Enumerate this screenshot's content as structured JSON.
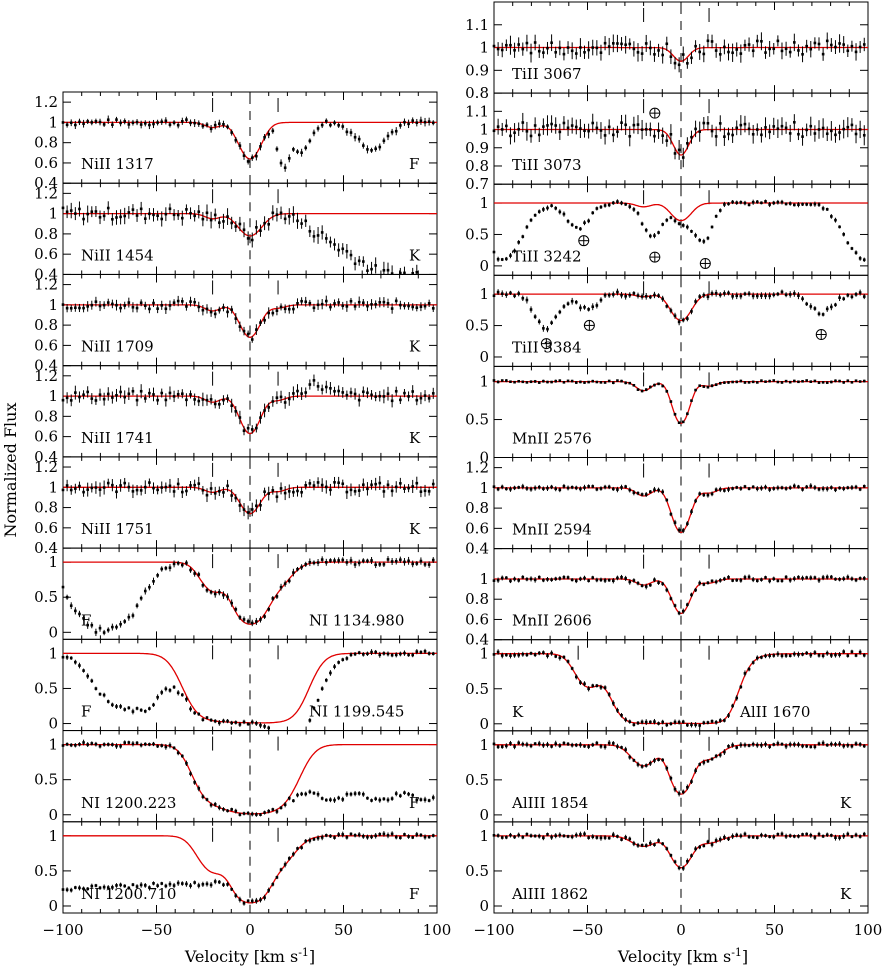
{
  "figure": {
    "y_axis_title": "Normalized Flux",
    "x_axis_title": "Velocity [km s",
    "x_axis_title_sup": "-1",
    "x_axis_title_end": "]"
  },
  "colors": {
    "model": "#e00000",
    "data": "#000000"
  },
  "chart_data": [
    {
      "type": "line",
      "column": "left",
      "transition": "NiII 1317",
      "tag": "F",
      "xlim": [
        -100,
        100
      ],
      "ylim": [
        0.4,
        1.3
      ],
      "yticks": [
        "1.2",
        "1",
        "0.8",
        "0.6",
        "0.4"
      ],
      "components": [
        -20,
        0,
        15
      ],
      "series": [
        {
          "name": "model",
          "absorptions": [
            [
              0,
              0.36,
              5.5
            ],
            [
              -20,
              0.05,
              4
            ]
          ]
        },
        {
          "name": "data",
          "noise": 0.03,
          "extra_features": [
            [
              18,
              0.45,
              3
            ],
            [
              28,
              0.3,
              4
            ],
            [
              65,
              0.25,
              8
            ]
          ]
        }
      ]
    },
    {
      "type": "line",
      "column": "left",
      "transition": "NiII 1454",
      "tag": "K",
      "xlim": [
        -100,
        100
      ],
      "ylim": [
        0.4,
        1.3
      ],
      "yticks": [
        "1.2",
        "1",
        "0.8",
        "0.6",
        "0.4"
      ],
      "components": [
        -20,
        0,
        15
      ],
      "series": [
        {
          "name": "model",
          "absorptions": [
            [
              0,
              0.22,
              6
            ],
            [
              -20,
              0.05,
              4
            ]
          ]
        },
        {
          "name": "data",
          "noise": 0.06,
          "slope_from": 20,
          "slope_to": 70,
          "slope_end": 0.4
        }
      ]
    },
    {
      "type": "line",
      "column": "left",
      "transition": "NiII 1709",
      "tag": "K",
      "xlim": [
        -100,
        100
      ],
      "ylim": [
        0.4,
        1.3
      ],
      "yticks": [
        "1.2",
        "1",
        "0.8",
        "0.6",
        "0.4"
      ],
      "components": [
        -20,
        0,
        15
      ],
      "series": [
        {
          "name": "model",
          "absorptions": [
            [
              0,
              0.32,
              5
            ],
            [
              -20,
              0.06,
              4
            ],
            [
              15,
              0.03,
              4
            ]
          ]
        },
        {
          "name": "data",
          "noise": 0.04
        }
      ]
    },
    {
      "type": "line",
      "column": "left",
      "transition": "NiII 1741",
      "tag": "K",
      "xlim": [
        -100,
        100
      ],
      "ylim": [
        0.4,
        1.3
      ],
      "yticks": [
        "1.2",
        "1",
        "0.8",
        "0.6",
        "0.4"
      ],
      "components": [
        -20,
        0,
        15
      ],
      "series": [
        {
          "name": "model",
          "absorptions": [
            [
              0,
              0.37,
              5
            ],
            [
              -20,
              0.06,
              4
            ],
            [
              15,
              0.04,
              4
            ]
          ]
        },
        {
          "name": "data",
          "noise": 0.05,
          "extra_features": [
            [
              35,
              -0.12,
              6
            ]
          ]
        }
      ]
    },
    {
      "type": "line",
      "column": "left",
      "transition": "NiII 1751",
      "tag": "K",
      "xlim": [
        -100,
        100
      ],
      "ylim": [
        0.4,
        1.3
      ],
      "yticks": [
        "1.2",
        "1",
        "0.8",
        "0.6",
        "0.4"
      ],
      "components": [
        -20,
        0,
        15
      ],
      "series": [
        {
          "name": "model",
          "absorptions": [
            [
              0,
              0.26,
              5
            ],
            [
              -20,
              0.05,
              4
            ],
            [
              15,
              0.04,
              4
            ]
          ]
        },
        {
          "name": "data",
          "noise": 0.05
        }
      ]
    },
    {
      "type": "line",
      "column": "left",
      "transition": "NI 1134.980",
      "tag": "F",
      "tag_side": "left",
      "xlim": [
        -100,
        100
      ],
      "ylim": [
        -0.1,
        1.2
      ],
      "yticks": [
        "1",
        "0.5",
        "0"
      ],
      "components": [
        -20,
        0,
        15
      ],
      "series": [
        {
          "name": "model",
          "absorptions": [
            [
              0,
              0.88,
              7
            ],
            [
              -20,
              0.4,
              6
            ],
            [
              15,
              0.3,
              7
            ]
          ]
        },
        {
          "name": "data",
          "noise": 0.04,
          "extra_features": [
            [
              -85,
              0.85,
              12
            ],
            [
              -65,
              0.6,
              10
            ]
          ]
        }
      ]
    },
    {
      "type": "line",
      "column": "left",
      "transition": "NI 1199.545",
      "tag": "F",
      "tag_side": "left",
      "xlim": [
        -100,
        100
      ],
      "ylim": [
        -0.1,
        1.2
      ],
      "yticks": [
        "1",
        "0.5",
        "0"
      ],
      "components": [
        -20,
        0,
        15
      ],
      "series": [
        {
          "name": "model",
          "absorptions": [
            [
              0,
              0.97,
              12
            ],
            [
              -20,
              0.9,
              10
            ],
            [
              15,
              0.9,
              10
            ]
          ]
        },
        {
          "name": "data",
          "noise": 0.03,
          "extra_features": [
            [
              -75,
              0.6,
              10
            ],
            [
              -55,
              0.7,
              10
            ],
            [
              30,
              0.5,
              10
            ]
          ]
        }
      ]
    },
    {
      "type": "line",
      "column": "left",
      "transition": "NI 1200.223",
      "tag": "F",
      "xlim": [
        -100,
        100
      ],
      "ylim": [
        -0.1,
        1.2
      ],
      "yticks": [
        "1",
        "0.5",
        "0"
      ],
      "components": [
        -20,
        0,
        15
      ],
      "series": [
        {
          "name": "model",
          "absorptions": [
            [
              0,
              0.98,
              10
            ],
            [
              -20,
              0.75,
              8
            ],
            [
              15,
              0.7,
              9
            ]
          ]
        },
        {
          "name": "data",
          "noise": 0.03,
          "floor_from": 10,
          "floor_level": 0.25
        }
      ]
    },
    {
      "type": "line",
      "column": "left",
      "transition": "NI 1200.710",
      "tag": "F",
      "xlim": [
        -100,
        100
      ],
      "ylim": [
        -0.1,
        1.2
      ],
      "yticks": [
        "1",
        "0.5",
        "0"
      ],
      "components": [
        -20,
        0,
        15
      ],
      "series": [
        {
          "name": "model",
          "absorptions": [
            [
              0,
              0.95,
              7
            ],
            [
              -20,
              0.5,
              7
            ],
            [
              15,
              0.4,
              8
            ]
          ]
        },
        {
          "name": "data",
          "noise": 0.03,
          "floor_to": -10,
          "floor_level": 0.25
        }
      ]
    },
    {
      "type": "line",
      "column": "right",
      "transition": "TiII 3067",
      "tag": "",
      "xlim": [
        -100,
        100
      ],
      "ylim": [
        0.8,
        1.2
      ],
      "yticks": [
        "1.1",
        "1",
        "0.9",
        "0.8"
      ],
      "components": [
        -20,
        0,
        15
      ],
      "series": [
        {
          "name": "model",
          "absorptions": [
            [
              0,
              0.06,
              4
            ]
          ]
        },
        {
          "name": "data",
          "noise": 0.03
        }
      ]
    },
    {
      "type": "line",
      "column": "right",
      "transition": "TiII 3073",
      "tag": "",
      "xlim": [
        -100,
        100
      ],
      "ylim": [
        0.7,
        1.2
      ],
      "yticks": [
        "1.1",
        "1",
        "0.9",
        "0.8",
        "0.7"
      ],
      "components": [
        -20,
        0,
        15
      ],
      "series": [
        {
          "name": "model",
          "absorptions": [
            [
              0,
              0.14,
              4
            ]
          ]
        },
        {
          "name": "data",
          "noise": 0.04
        }
      ]
    },
    {
      "type": "line",
      "column": "right",
      "transition": "TiII 3242",
      "tag": "",
      "xlim": [
        -100,
        100
      ],
      "ylim": [
        -0.15,
        1.3
      ],
      "yticks": [
        "1",
        "0.5",
        "0"
      ],
      "components": [
        -20,
        0,
        15
      ],
      "series": [
        {
          "name": "model",
          "absorptions": [
            [
              0,
              0.28,
              5
            ],
            [
              -20,
              0.06,
              4
            ]
          ]
        },
        {
          "name": "data",
          "noise": 0.03,
          "extra_features": [
            [
              -55,
              0.4,
              6
            ],
            [
              -15,
              0.5,
              5
            ],
            [
              12,
              0.6,
              5
            ],
            [
              -95,
              0.9,
              10
            ],
            [
              98,
              0.9,
              10
            ]
          ]
        }
      ]
    },
    {
      "type": "line",
      "column": "right",
      "transition": "TiII 3384",
      "tag": "",
      "xlim": [
        -100,
        100
      ],
      "ylim": [
        -0.15,
        1.3
      ],
      "yticks": [
        "1",
        "0.5",
        "0"
      ],
      "components": [
        -20,
        0,
        15
      ],
      "series": [
        {
          "name": "model",
          "absorptions": [
            [
              0,
              0.42,
              5
            ],
            [
              -20,
              0.04,
              4
            ]
          ]
        },
        {
          "name": "data",
          "noise": 0.04,
          "extra_features": [
            [
              -72,
              0.55,
              6
            ],
            [
              -50,
              0.25,
              5
            ],
            [
              75,
              0.3,
              6
            ]
          ]
        }
      ]
    },
    {
      "type": "line",
      "column": "right",
      "transition": "MnII 2576",
      "tag": "",
      "xlim": [
        -100,
        100
      ],
      "ylim": [
        0,
        1.2
      ],
      "yticks": [
        "1",
        "0.5",
        "0"
      ],
      "components": [
        -20,
        0,
        15
      ],
      "series": [
        {
          "name": "model",
          "absorptions": [
            [
              0,
              0.55,
              4
            ],
            [
              -20,
              0.12,
              4
            ],
            [
              15,
              0.06,
              4
            ]
          ]
        },
        {
          "name": "data",
          "noise": 0.015
        }
      ]
    },
    {
      "type": "line",
      "column": "right",
      "transition": "MnII 2594",
      "tag": "",
      "xlim": [
        -100,
        100
      ],
      "ylim": [
        0.4,
        1.3
      ],
      "yticks": [
        "1.2",
        "1",
        "0.8",
        "0.6",
        "0.4"
      ],
      "components": [
        -20,
        0,
        15
      ],
      "series": [
        {
          "name": "model",
          "absorptions": [
            [
              0,
              0.44,
              4.5
            ],
            [
              -20,
              0.08,
              4
            ],
            [
              15,
              0.05,
              4
            ]
          ]
        },
        {
          "name": "data",
          "noise": 0.02
        }
      ]
    },
    {
      "type": "line",
      "column": "right",
      "transition": "MnII 2606",
      "tag": "",
      "xlim": [
        -100,
        100
      ],
      "ylim": [
        0.4,
        1.3
      ],
      "yticks": [
        "1",
        "0.8",
        "0.6",
        "0.4"
      ],
      "components": [
        -20,
        0,
        15
      ],
      "series": [
        {
          "name": "model",
          "absorptions": [
            [
              0,
              0.34,
              4.5
            ],
            [
              -20,
              0.06,
              4
            ],
            [
              15,
              0.04,
              4
            ]
          ]
        },
        {
          "name": "data",
          "noise": 0.02
        }
      ]
    },
    {
      "type": "line",
      "column": "right",
      "transition": "AlII 1670",
      "tag": "K",
      "tag_side": "left",
      "xlim": [
        -100,
        100
      ],
      "ylim": [
        -0.1,
        1.2
      ],
      "yticks": [
        "1",
        "0.5",
        "0"
      ],
      "components": [
        -55,
        -20,
        0,
        15
      ],
      "series": [
        {
          "name": "model",
          "absorptions": [
            [
              0,
              0.98,
              14
            ],
            [
              -20,
              0.98,
              10
            ],
            [
              -50,
              0.45,
              6
            ],
            [
              15,
              0.95,
              8
            ]
          ]
        },
        {
          "name": "data",
          "noise": 0.03
        }
      ]
    },
    {
      "type": "line",
      "column": "right",
      "transition": "AlIII 1854",
      "tag": "K",
      "xlim": [
        -100,
        100
      ],
      "ylim": [
        -0.1,
        1.2
      ],
      "yticks": [
        "1",
        "0.5",
        "0"
      ],
      "components": [
        -20,
        0,
        15
      ],
      "series": [
        {
          "name": "model",
          "absorptions": [
            [
              0,
              0.7,
              5
            ],
            [
              -20,
              0.3,
              6
            ],
            [
              15,
              0.2,
              6
            ]
          ]
        },
        {
          "name": "data",
          "noise": 0.03
        }
      ]
    },
    {
      "type": "line",
      "column": "right",
      "transition": "AlIII 1862",
      "tag": "K",
      "xlim": [
        -100,
        100
      ],
      "ylim": [
        -0.1,
        1.2
      ],
      "yticks": [
        "1",
        "0.5",
        "0"
      ],
      "components": [
        -20,
        0,
        15
      ],
      "series": [
        {
          "name": "model",
          "absorptions": [
            [
              0,
              0.45,
              5
            ],
            [
              -20,
              0.15,
              6
            ],
            [
              15,
              0.1,
              6
            ]
          ]
        },
        {
          "name": "data",
          "noise": 0.03
        }
      ]
    }
  ],
  "atm_markers": [
    {
      "panel": 10,
      "v": -14,
      "f": 0.78
    },
    {
      "panel": 11,
      "v": -52,
      "f": 0.38
    },
    {
      "panel": 11,
      "v": -14,
      "f": 0.2
    },
    {
      "panel": 11,
      "v": 13,
      "f": 0.13
    },
    {
      "panel": 12,
      "v": -72,
      "f": 0.25
    },
    {
      "panel": 12,
      "v": -49,
      "f": 0.45
    },
    {
      "panel": 12,
      "v": 75,
      "f": 0.35
    }
  ],
  "xticks": [
    "−100",
    "−50",
    "0",
    "50",
    "100"
  ]
}
